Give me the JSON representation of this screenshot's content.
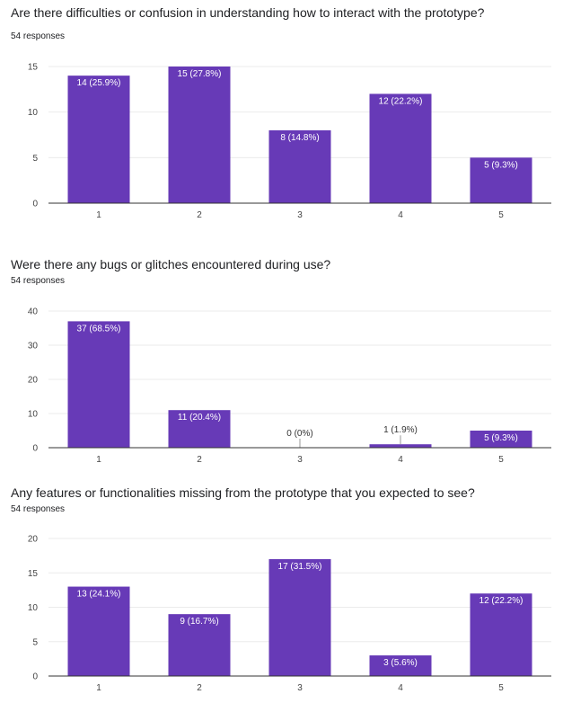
{
  "charts": [
    {
      "title": "Are there difficulties or confusion in understanding how to interact with the prototype?",
      "subtitle": "54 responses"
    },
    {
      "title": "Were there any bugs or glitches encountered during use?",
      "subtitle": "54 responses"
    },
    {
      "title": "Any features or functionalities missing from the prototype that you expected to see?",
      "subtitle": "54 responses"
    }
  ],
  "colors": {
    "bar": "#673ab7",
    "grid": "#ebebeb",
    "axis": "#333333",
    "label_inside": "#ffffff",
    "label_outside": "#333333"
  },
  "chart_data": [
    {
      "type": "bar",
      "title": "Are there difficulties or confusion in understanding how to interact with the prototype?",
      "categories": [
        "1",
        "2",
        "3",
        "4",
        "5"
      ],
      "values": [
        14,
        15,
        8,
        12,
        5
      ],
      "data_labels": [
        "14 (25.9%)",
        "15 (27.8%)",
        "8 (14.8%)",
        "12 (22.2%)",
        "5 (9.3%)"
      ],
      "yticks": [
        0,
        5,
        10,
        15
      ],
      "ylim": [
        0,
        15
      ],
      "grid": true
    },
    {
      "type": "bar",
      "title": "Were there any bugs or glitches encountered during use?",
      "categories": [
        "1",
        "2",
        "3",
        "4",
        "5"
      ],
      "values": [
        37,
        11,
        0,
        1,
        5
      ],
      "data_labels": [
        "37 (68.5%)",
        "11 (20.4%)",
        "0 (0%)",
        "1 (1.9%)",
        "5 (9.3%)"
      ],
      "yticks": [
        0,
        10,
        20,
        30,
        40
      ],
      "ylim": [
        0,
        40
      ],
      "grid": true
    },
    {
      "type": "bar",
      "title": "Any features or functionalities missing from the prototype that you expected to see?",
      "categories": [
        "1",
        "2",
        "3",
        "4",
        "5"
      ],
      "values": [
        13,
        9,
        17,
        3,
        12
      ],
      "data_labels": [
        "13 (24.1%)",
        "9 (16.7%)",
        "17 (31.5%)",
        "3 (5.6%)",
        "12 (22.2%)"
      ],
      "yticks": [
        0,
        5,
        10,
        15,
        20
      ],
      "ylim": [
        0,
        20
      ],
      "grid": true
    }
  ]
}
